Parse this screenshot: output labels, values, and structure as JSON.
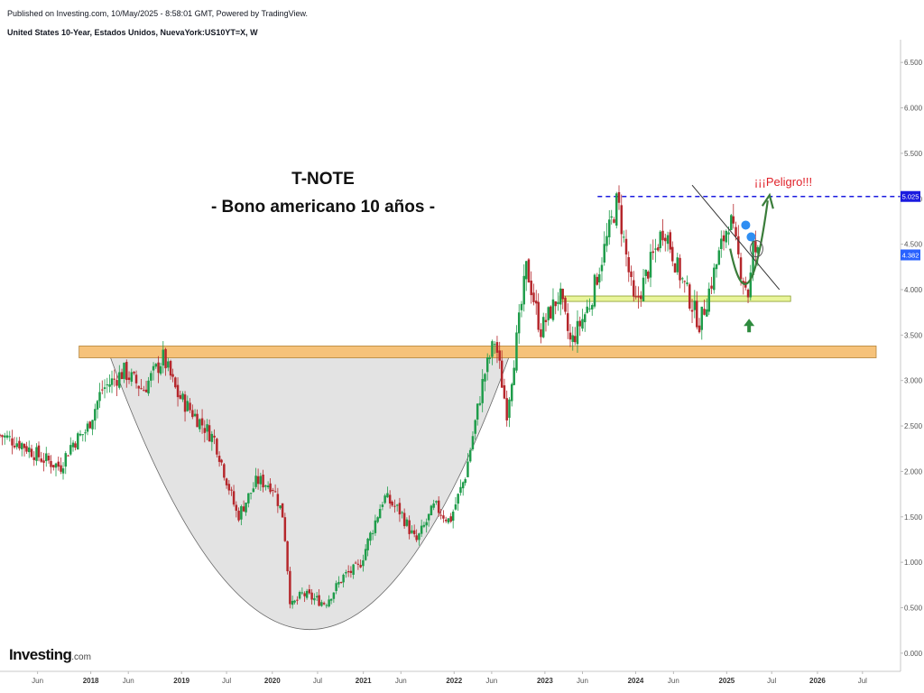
{
  "header": {
    "published": "Published on Investing.com, 10/May/2025 - 8:58:01 GMT, Powered by TradingView.",
    "symbol": "United States 10-Year, Estados Unidos, NuevaYork:US10YT=X, W"
  },
  "logo": {
    "main": "Investing",
    "suffix": ".com"
  },
  "chart_data": {
    "type": "candlestick",
    "title": "T-NOTE",
    "subtitle": "- Bono americano 10 años -",
    "annotation": "¡¡¡Peligro!!!",
    "ylim": [
      -0.2,
      6.75
    ],
    "y_ticks": [
      "0.000",
      "0.500",
      "1.000",
      "1.500",
      "2.000",
      "2.500",
      "3.000",
      "3.500",
      "4.000",
      "4.500",
      "5.000",
      "5.500",
      "6.000",
      "6.500"
    ],
    "x_ticks": [
      {
        "label": "Jun",
        "date": "2017-06-01",
        "year": false
      },
      {
        "label": "2018",
        "date": "2018-01-01",
        "year": true
      },
      {
        "label": "Jun",
        "date": "2018-06-01",
        "year": false
      },
      {
        "label": "2019",
        "date": "2019-01-01",
        "year": true
      },
      {
        "label": "Jul",
        "date": "2019-07-01",
        "year": false
      },
      {
        "label": "2020",
        "date": "2020-01-01",
        "year": true
      },
      {
        "label": "Jul",
        "date": "2020-07-01",
        "year": false
      },
      {
        "label": "2021",
        "date": "2021-01-01",
        "year": true
      },
      {
        "label": "Jun",
        "date": "2021-06-01",
        "year": false
      },
      {
        "label": "2022",
        "date": "2022-01-01",
        "year": true
      },
      {
        "label": "Jun",
        "date": "2022-06-01",
        "year": false
      },
      {
        "label": "2023",
        "date": "2023-01-01",
        "year": true
      },
      {
        "label": "Jun",
        "date": "2023-06-01",
        "year": false
      },
      {
        "label": "2024",
        "date": "2024-01-01",
        "year": true
      },
      {
        "label": "Jun",
        "date": "2024-06-01",
        "year": false
      },
      {
        "label": "2025",
        "date": "2025-01-01",
        "year": true
      },
      {
        "label": "Jul",
        "date": "2025-07-01",
        "year": false
      },
      {
        "label": "2026",
        "date": "2026-01-01",
        "year": true
      },
      {
        "label": "Jul",
        "date": "2026-07-01",
        "year": false
      }
    ],
    "x_range": [
      "2017-01-01",
      "2026-12-01"
    ],
    "resistance_level": {
      "value": 5.025,
      "label": "5.025",
      "color": "#1a1adf"
    },
    "current_price": {
      "value": 4.382,
      "label": "4.382",
      "color": "#2962ff"
    },
    "support_zone": {
      "low": 3.87,
      "high": 3.93,
      "from": "2023-03-01",
      "to": "2025-09-15",
      "color": "#e9f59a"
    },
    "neckline_zone": {
      "low": 3.25,
      "high": 3.38,
      "from": "2017-11-15",
      "to": "2026-12-01",
      "color": "#f6c27a"
    },
    "cup_bowl": {
      "left": "2018-03-15",
      "right": "2022-08-15",
      "top": 3.3,
      "bottom": 0.26,
      "color": "#e3e3e3"
    },
    "downtrend_line": [
      {
        "date": "2024-08-15",
        "value": 5.15
      },
      {
        "date": "2025-08-01",
        "value": 4.0
      }
    ],
    "projection_curve": [
      {
        "date": "2025-01-15",
        "value": 4.45
      },
      {
        "date": "2025-04-01",
        "value": 3.88
      },
      {
        "date": "2025-06-15",
        "value": 4.98
      }
    ],
    "bounce_arrow": {
      "date": "2025-04-01",
      "value": 3.6
    },
    "colors": {
      "up": "#1e9c4a",
      "down": "#b5262b",
      "projection": "#3a7d3a",
      "trendline": "#333333"
    },
    "price_path": [
      {
        "date": "2017-01-01",
        "value": 2.4
      },
      {
        "date": "2017-04-01",
        "value": 2.3
      },
      {
        "date": "2017-06-15",
        "value": 2.15
      },
      {
        "date": "2017-09-01",
        "value": 2.05
      },
      {
        "date": "2017-10-15",
        "value": 2.3
      },
      {
        "date": "2017-12-15",
        "value": 2.45
      },
      {
        "date": "2018-02-15",
        "value": 2.9
      },
      {
        "date": "2018-05-15",
        "value": 3.1
      },
      {
        "date": "2018-08-01",
        "value": 2.9
      },
      {
        "date": "2018-10-20",
        "value": 3.25
      },
      {
        "date": "2018-12-15",
        "value": 2.85
      },
      {
        "date": "2019-03-01",
        "value": 2.6
      },
      {
        "date": "2019-05-15",
        "value": 2.35
      },
      {
        "date": "2019-08-15",
        "value": 1.5
      },
      {
        "date": "2019-11-01",
        "value": 1.9
      },
      {
        "date": "2020-01-01",
        "value": 1.85
      },
      {
        "date": "2020-02-15",
        "value": 1.5
      },
      {
        "date": "2020-03-15",
        "value": 0.5
      },
      {
        "date": "2020-05-01",
        "value": 0.65
      },
      {
        "date": "2020-08-01",
        "value": 0.55
      },
      {
        "date": "2020-10-15",
        "value": 0.85
      },
      {
        "date": "2020-12-15",
        "value": 0.95
      },
      {
        "date": "2021-03-25",
        "value": 1.72
      },
      {
        "date": "2021-06-01",
        "value": 1.55
      },
      {
        "date": "2021-08-01",
        "value": 1.22
      },
      {
        "date": "2021-10-15",
        "value": 1.62
      },
      {
        "date": "2021-12-15",
        "value": 1.45
      },
      {
        "date": "2022-02-15",
        "value": 1.95
      },
      {
        "date": "2022-05-01",
        "value": 3.05
      },
      {
        "date": "2022-06-15",
        "value": 3.45
      },
      {
        "date": "2022-08-01",
        "value": 2.65
      },
      {
        "date": "2022-10-20",
        "value": 4.25
      },
      {
        "date": "2022-12-15",
        "value": 3.55
      },
      {
        "date": "2023-03-01",
        "value": 3.95
      },
      {
        "date": "2023-04-15",
        "value": 3.4
      },
      {
        "date": "2023-07-01",
        "value": 3.85
      },
      {
        "date": "2023-10-20",
        "value": 4.99
      },
      {
        "date": "2023-12-27",
        "value": 3.8
      },
      {
        "date": "2024-04-25",
        "value": 4.7
      },
      {
        "date": "2024-06-15",
        "value": 4.25
      },
      {
        "date": "2024-09-15",
        "value": 3.62
      },
      {
        "date": "2025-01-13",
        "value": 4.8
      },
      {
        "date": "2025-03-01",
        "value": 4.2
      },
      {
        "date": "2025-04-04",
        "value": 3.9
      },
      {
        "date": "2025-04-12",
        "value": 4.48
      },
      {
        "date": "2025-05-09",
        "value": 4.38
      }
    ]
  }
}
